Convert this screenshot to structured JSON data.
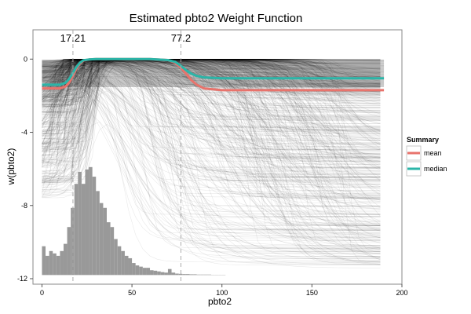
{
  "chart_data": {
    "type": "line",
    "title": "Estimated pbto2 Weight Function",
    "xlabel": "pbto2",
    "ylabel": "w(pbto2)",
    "xlim": [
      -5,
      200
    ],
    "ylim": [
      -12.3,
      1.6
    ],
    "x_ticks": [
      {
        "value": 0,
        "label": "0"
      },
      {
        "value": 50,
        "label": "50"
      },
      {
        "value": 100,
        "label": "100"
      },
      {
        "value": 150,
        "label": "150"
      },
      {
        "value": 200,
        "label": "200"
      }
    ],
    "y_ticks": [
      {
        "value": 0,
        "label": "0"
      },
      {
        "value": -4,
        "label": "-4"
      },
      {
        "value": -8,
        "label": "-8"
      },
      {
        "value": -12,
        "label": "-12"
      }
    ],
    "grid": false,
    "vlines": [
      {
        "x": 17.21,
        "label": "17.21"
      },
      {
        "x": 77.2,
        "label": "77.2"
      }
    ],
    "legend": {
      "title": "Summary",
      "position": "right",
      "entries": [
        {
          "label": "mean",
          "color": "#E8736C"
        },
        {
          "label": "median",
          "color": "#2BB5A8"
        }
      ]
    },
    "series": [
      {
        "name": "mean",
        "color": "#E8736C",
        "x": [
          0,
          10,
          13,
          15,
          17,
          19,
          21,
          23,
          26,
          30,
          60,
          70,
          74,
          77,
          80,
          83,
          86,
          90,
          100,
          120,
          150,
          190
        ],
        "y": [
          -1.6,
          -1.6,
          -1.5,
          -1.3,
          -0.95,
          -0.55,
          -0.25,
          -0.08,
          -0.02,
          0,
          0,
          -0.05,
          -0.2,
          -0.45,
          -0.8,
          -1.15,
          -1.4,
          -1.6,
          -1.7,
          -1.7,
          -1.7,
          -1.7
        ]
      },
      {
        "name": "median",
        "color": "#2BB5A8",
        "x": [
          0,
          10,
          13,
          15,
          17,
          19,
          21,
          23,
          26,
          30,
          60,
          70,
          74,
          77,
          80,
          83,
          86,
          90,
          100,
          120,
          150,
          190
        ],
        "y": [
          -1.4,
          -1.4,
          -1.3,
          -1.1,
          -0.8,
          -0.45,
          -0.2,
          -0.06,
          -0.02,
          0,
          0,
          -0.05,
          -0.15,
          -0.35,
          -0.6,
          -0.8,
          -0.92,
          -1.0,
          -1.05,
          -1.05,
          -1.05,
          -1.05
        ]
      }
    ],
    "posterior_draws": {
      "description_color": "#000000",
      "x_max": 190
    },
    "histogram": {
      "bin_width": 2,
      "bin_starts": [
        0,
        2,
        4,
        6,
        8,
        10,
        12,
        14,
        16,
        18,
        20,
        22,
        24,
        26,
        28,
        30,
        32,
        34,
        36,
        38,
        40,
        42,
        44,
        46,
        48,
        50,
        52,
        54,
        56,
        58,
        60,
        62,
        64,
        66,
        68,
        70,
        72,
        74,
        76,
        78,
        80,
        82,
        84,
        86,
        88,
        90,
        92,
        94,
        96,
        98,
        100
      ],
      "heights": [
        0.12,
        0.08,
        0.1,
        0.09,
        0.08,
        0.1,
        0.13,
        0.2,
        0.28,
        0.38,
        0.43,
        0.38,
        0.44,
        0.45,
        0.41,
        0.35,
        0.3,
        0.28,
        0.22,
        0.2,
        0.15,
        0.12,
        0.1,
        0.08,
        0.07,
        0.05,
        0.04,
        0.035,
        0.03,
        0.03,
        0.02,
        0.018,
        0.015,
        0.012,
        0.01,
        0.025,
        0.01,
        0.006,
        0.005,
        0.004,
        0.004,
        0.003,
        0.003,
        0.002,
        0.002,
        0.002,
        0.002,
        0.001,
        0.001,
        0.001,
        0.001
      ],
      "baseline": -11.8,
      "top": -5.9,
      "color": "#999999"
    }
  }
}
